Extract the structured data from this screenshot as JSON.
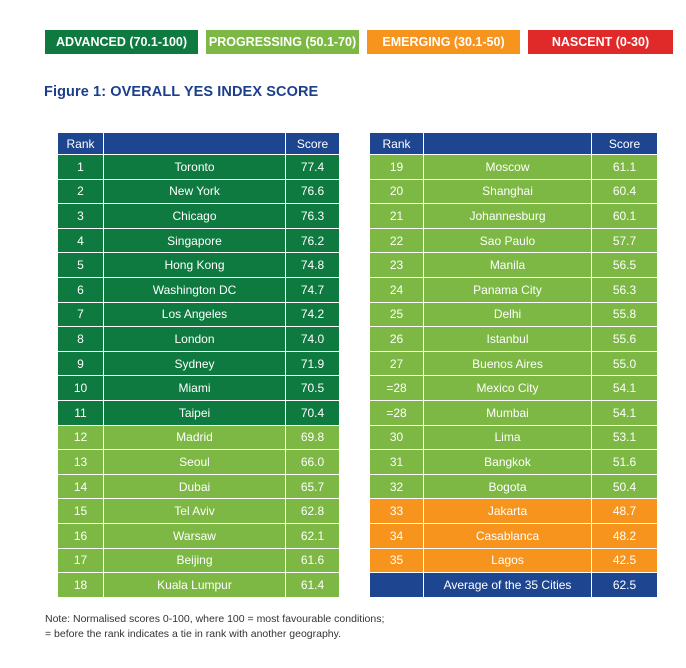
{
  "legend": [
    {
      "label": "ADVANCED (70.1-100)",
      "color": "#0e7a3f"
    },
    {
      "label": "PROGRESSING (50.1-70)",
      "color": "#7cb843"
    },
    {
      "label": "EMERGING (30.1-50)",
      "color": "#f7941d"
    },
    {
      "label": "NASCENT (0-30)",
      "color": "#e02a2a"
    }
  ],
  "figure_title": "Figure 1: OVERALL YES INDEX SCORE",
  "headers": {
    "rank": "Rank",
    "score": "Score"
  },
  "tier_colors": {
    "advanced": "#0e7a3f",
    "progressing": "#7cb843",
    "emerging": "#f7941d"
  },
  "left_table": [
    {
      "rank": "1",
      "city": "Toronto",
      "score": "77.4",
      "tier": "advanced"
    },
    {
      "rank": "2",
      "city": "New York",
      "score": "76.6",
      "tier": "advanced"
    },
    {
      "rank": "3",
      "city": "Chicago",
      "score": "76.3",
      "tier": "advanced"
    },
    {
      "rank": "4",
      "city": "Singapore",
      "score": "76.2",
      "tier": "advanced"
    },
    {
      "rank": "5",
      "city": "Hong Kong",
      "score": "74.8",
      "tier": "advanced"
    },
    {
      "rank": "6",
      "city": "Washington DC",
      "score": "74.7",
      "tier": "advanced"
    },
    {
      "rank": "7",
      "city": "Los Angeles",
      "score": "74.2",
      "tier": "advanced"
    },
    {
      "rank": "8",
      "city": "London",
      "score": "74.0",
      "tier": "advanced"
    },
    {
      "rank": "9",
      "city": "Sydney",
      "score": "71.9",
      "tier": "advanced"
    },
    {
      "rank": "10",
      "city": "Miami",
      "score": "70.5",
      "tier": "advanced"
    },
    {
      "rank": "11",
      "city": "Taipei",
      "score": "70.4",
      "tier": "advanced"
    },
    {
      "rank": "12",
      "city": "Madrid",
      "score": "69.8",
      "tier": "progressing"
    },
    {
      "rank": "13",
      "city": "Seoul",
      "score": "66.0",
      "tier": "progressing"
    },
    {
      "rank": "14",
      "city": "Dubai",
      "score": "65.7",
      "tier": "progressing"
    },
    {
      "rank": "15",
      "city": "Tel Aviv",
      "score": "62.8",
      "tier": "progressing"
    },
    {
      "rank": "16",
      "city": "Warsaw",
      "score": "62.1",
      "tier": "progressing"
    },
    {
      "rank": "17",
      "city": "Beijing",
      "score": "61.6",
      "tier": "progressing"
    },
    {
      "rank": "18",
      "city": "Kuala Lumpur",
      "score": "61.4",
      "tier": "progressing"
    }
  ],
  "right_table": [
    {
      "rank": "19",
      "city": "Moscow",
      "score": "61.1",
      "tier": "progressing"
    },
    {
      "rank": "20",
      "city": "Shanghai",
      "score": "60.4",
      "tier": "progressing"
    },
    {
      "rank": "21",
      "city": "Johannesburg",
      "score": "60.1",
      "tier": "progressing"
    },
    {
      "rank": "22",
      "city": "Sao Paulo",
      "score": "57.7",
      "tier": "progressing"
    },
    {
      "rank": "23",
      "city": "Manila",
      "score": "56.5",
      "tier": "progressing"
    },
    {
      "rank": "24",
      "city": "Panama City",
      "score": "56.3",
      "tier": "progressing"
    },
    {
      "rank": "25",
      "city": "Delhi",
      "score": "55.8",
      "tier": "progressing"
    },
    {
      "rank": "26",
      "city": "Istanbul",
      "score": "55.6",
      "tier": "progressing"
    },
    {
      "rank": "27",
      "city": "Buenos Aires",
      "score": "55.0",
      "tier": "progressing"
    },
    {
      "rank": "=28",
      "city": "Mexico City",
      "score": "54.1",
      "tier": "progressing"
    },
    {
      "rank": "=28",
      "city": "Mumbai",
      "score": "54.1",
      "tier": "progressing"
    },
    {
      "rank": "30",
      "city": "Lima",
      "score": "53.1",
      "tier": "progressing"
    },
    {
      "rank": "31",
      "city": "Bangkok",
      "score": "51.6",
      "tier": "progressing"
    },
    {
      "rank": "32",
      "city": "Bogota",
      "score": "50.4",
      "tier": "progressing"
    },
    {
      "rank": "33",
      "city": "Jakarta",
      "score": "48.7",
      "tier": "emerging"
    },
    {
      "rank": "34",
      "city": "Casablanca",
      "score": "48.2",
      "tier": "emerging"
    },
    {
      "rank": "35",
      "city": "Lagos",
      "score": "42.5",
      "tier": "emerging"
    }
  ],
  "average": {
    "label": "Average of the 35 Cities",
    "score": "62.5"
  },
  "note": {
    "line1": "Note: Normalised scores 0-100, where 100 = most favourable conditions;",
    "line2": "= before the rank indicates a tie in rank with another geography."
  }
}
